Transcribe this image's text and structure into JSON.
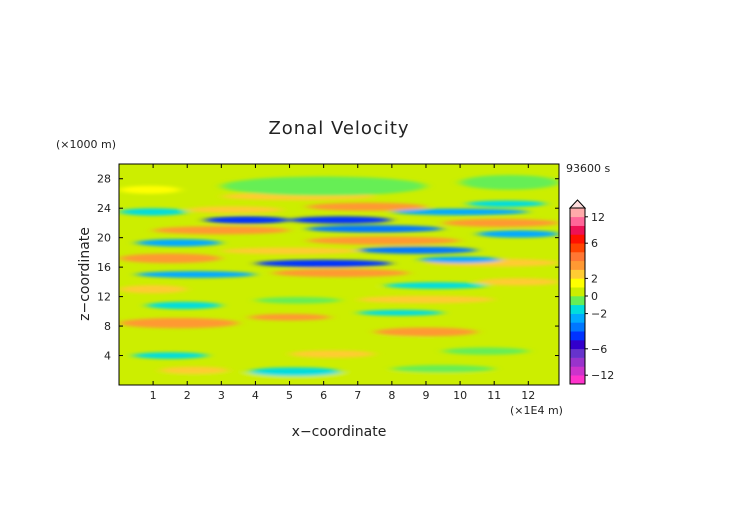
{
  "chart_data": {
    "type": "heatmap",
    "title": "Zonal Velocity",
    "xlabel": "x−coordinate",
    "ylabel": "z−coordinate",
    "x_unit": "(×1E4 m)",
    "y_unit": "(×1000 m)",
    "time_label": "93600 s",
    "xlim": [
      0,
      12.9
    ],
    "ylim": [
      0,
      30
    ],
    "x_ticks": [
      "1",
      "2",
      "3",
      "4",
      "5",
      "6",
      "7",
      "8",
      "9",
      "10",
      "11",
      "12"
    ],
    "y_ticks": [
      "4",
      "8",
      "12",
      "16",
      "20",
      "24",
      "28"
    ],
    "colorbar": {
      "ticks": [
        "12",
        "6",
        "2",
        "0",
        "−2",
        "−6",
        "−12"
      ],
      "tick_values": [
        12,
        6,
        2,
        0,
        -2,
        -6,
        -12
      ],
      "levels": [
        -14,
        -12,
        -10,
        -8,
        -6,
        -5,
        -4,
        -3,
        -2,
        -1,
        0,
        1,
        2,
        3,
        4,
        5,
        6,
        8,
        10,
        12,
        14
      ],
      "colors": [
        "#ff33cc",
        "#cc33cc",
        "#9933cc",
        "#6633cc",
        "#3300cc",
        "#0033ff",
        "#0077ff",
        "#00aaff",
        "#00dddd",
        "#66ee55",
        "#ccee00",
        "#ffff00",
        "#ffcc33",
        "#ff9933",
        "#ff7733",
        "#ff4400",
        "#ff1100",
        "#ee1155",
        "#ff6699",
        "#ffaaaa"
      ],
      "overflow_arrow_top": true
    },
    "bands": [
      {
        "z": 1.0,
        "x0": 0,
        "x1": 12.9,
        "value": 0.5,
        "h": 1.6
      },
      {
        "z": 2.0,
        "x0": 1.2,
        "x1": 3.2,
        "value": 2.5,
        "h": 1.0
      },
      {
        "z": 1.8,
        "x0": 3.8,
        "x1": 6.5,
        "value": -1.2,
        "h": 1.2
      },
      {
        "z": 2.2,
        "x0": 8.0,
        "x1": 11.0,
        "value": -1.0,
        "h": 1.0
      },
      {
        "z": 4.0,
        "x0": 0.4,
        "x1": 2.6,
        "value": -1.5,
        "h": 0.9
      },
      {
        "z": 4.2,
        "x0": 5.0,
        "x1": 7.5,
        "value": 2.5,
        "h": 1.0
      },
      {
        "z": 4.6,
        "x0": 9.5,
        "x1": 12.0,
        "value": -0.8,
        "h": 1.0
      },
      {
        "z": 6.0,
        "x0": 6.0,
        "x1": 9.5,
        "value": 0.6,
        "h": 1.2
      },
      {
        "z": 6.4,
        "x0": 0.0,
        "x1": 3.5,
        "value": 0.8,
        "h": 1.0
      },
      {
        "z": 8.4,
        "x0": 0.0,
        "x1": 3.5,
        "value": 3.2,
        "h": 1.4
      },
      {
        "z": 7.2,
        "x0": 7.5,
        "x1": 10.5,
        "value": 3.0,
        "h": 1.2
      },
      {
        "z": 9.2,
        "x0": 3.8,
        "x1": 6.2,
        "value": 3.0,
        "h": 0.9
      },
      {
        "z": 9.8,
        "x0": 7.0,
        "x1": 9.5,
        "value": -1.4,
        "h": 0.8
      },
      {
        "z": 10.8,
        "x0": 0.8,
        "x1": 3.0,
        "value": -1.6,
        "h": 1.0
      },
      {
        "z": 11.5,
        "x0": 4.0,
        "x1": 6.5,
        "value": -1.0,
        "h": 0.9
      },
      {
        "z": 11.6,
        "x0": 7.0,
        "x1": 11.0,
        "value": 2.8,
        "h": 1.0
      },
      {
        "z": 13.0,
        "x0": 0.0,
        "x1": 2.0,
        "value": 2.8,
        "h": 1.1
      },
      {
        "z": 13.2,
        "x0": 4.0,
        "x1": 7.5,
        "value": 0.5,
        "h": 1.0
      },
      {
        "z": 13.5,
        "x0": 7.8,
        "x1": 10.8,
        "value": -1.5,
        "h": 0.9
      },
      {
        "z": 14.0,
        "x0": 10.5,
        "x1": 12.9,
        "value": 2.5,
        "h": 1.0
      },
      {
        "z": 15.0,
        "x0": 0.5,
        "x1": 4.0,
        "value": -2.5,
        "h": 0.9
      },
      {
        "z": 15.2,
        "x0": 4.5,
        "x1": 8.5,
        "value": 3.5,
        "h": 1.1
      },
      {
        "z": 16.5,
        "x0": 4.0,
        "x1": 8.0,
        "value": -4.8,
        "h": 1.0
      },
      {
        "z": 16.6,
        "x0": 9.0,
        "x1": 12.9,
        "value": 2.8,
        "h": 1.1
      },
      {
        "z": 17.2,
        "x0": 0.0,
        "x1": 3.0,
        "value": 3.6,
        "h": 1.3
      },
      {
        "z": 17.0,
        "x0": 8.8,
        "x1": 11.2,
        "value": -2.2,
        "h": 0.9
      },
      {
        "z": 18.2,
        "x0": 3.0,
        "x1": 7.0,
        "value": 2.4,
        "h": 0.9
      },
      {
        "z": 18.3,
        "x0": 7.0,
        "x1": 10.5,
        "value": -3.2,
        "h": 1.0
      },
      {
        "z": 19.3,
        "x0": 0.5,
        "x1": 3.0,
        "value": -2.6,
        "h": 1.0
      },
      {
        "z": 19.6,
        "x0": 5.5,
        "x1": 10.0,
        "value": 3.5,
        "h": 1.1
      },
      {
        "z": 20.5,
        "x0": 10.5,
        "x1": 12.9,
        "value": -2.8,
        "h": 1.0
      },
      {
        "z": 21.0,
        "x0": 1.0,
        "x1": 5.0,
        "value": 3.4,
        "h": 1.1
      },
      {
        "z": 21.2,
        "x0": 5.5,
        "x1": 9.5,
        "value": -3.8,
        "h": 1.0
      },
      {
        "z": 22.0,
        "x0": 9.5,
        "x1": 12.9,
        "value": 3.0,
        "h": 1.1
      },
      {
        "z": 22.4,
        "x0": 2.5,
        "x1": 5.0,
        "value": -4.6,
        "h": 1.0
      },
      {
        "z": 22.4,
        "x0": 5.0,
        "x1": 8.0,
        "value": -4.2,
        "h": 1.0
      },
      {
        "z": 23.5,
        "x0": 0.0,
        "x1": 2.0,
        "value": -1.8,
        "h": 1.0
      },
      {
        "z": 23.8,
        "x0": 2.0,
        "x1": 4.8,
        "value": 2.8,
        "h": 0.9
      },
      {
        "z": 23.5,
        "x0": 8.0,
        "x1": 12.0,
        "value": -2.5,
        "h": 0.9
      },
      {
        "z": 24.2,
        "x0": 5.5,
        "x1": 9.0,
        "value": 3.6,
        "h": 1.1
      },
      {
        "z": 24.6,
        "x0": 10.2,
        "x1": 12.5,
        "value": -2.0,
        "h": 0.9
      },
      {
        "z": 25.6,
        "x0": 3.0,
        "x1": 7.5,
        "value": 2.8,
        "h": 1.0
      },
      {
        "z": 26.5,
        "x0": 0.0,
        "x1": 1.8,
        "value": 1.2,
        "h": 1.1
      },
      {
        "z": 27.0,
        "x0": 3.0,
        "x1": 9.0,
        "value": -0.9,
        "h": 2.6
      },
      {
        "z": 27.5,
        "x0": 10.0,
        "x1": 12.9,
        "value": -0.6,
        "h": 2.0
      }
    ]
  }
}
